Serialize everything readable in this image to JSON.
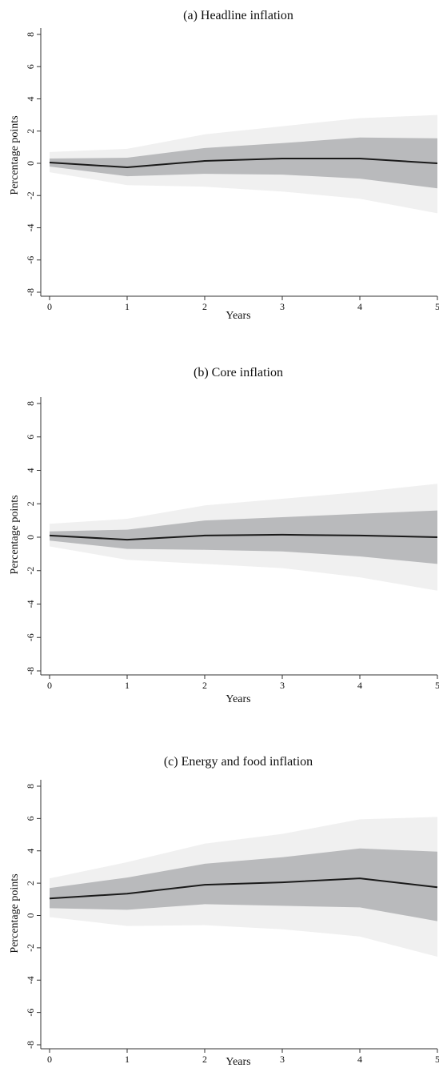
{
  "chart_data": [
    {
      "type": "area",
      "title": "(a) Headline inflation",
      "xlabel": "Years",
      "ylabel": "Percentage points",
      "x": [
        0,
        1,
        2,
        3,
        4,
        5
      ],
      "xlim": [
        0,
        5
      ],
      "ylim": [
        -8,
        8
      ],
      "xticks": [
        "0",
        "1",
        "2",
        "3",
        "4",
        "5"
      ],
      "yticks": [
        "-8",
        "-6",
        "-4",
        "-2",
        "0",
        "2",
        "4",
        "6",
        "8"
      ],
      "grid": false,
      "series": [
        {
          "role": "outer_band",
          "upper": [
            0.7,
            0.9,
            1.8,
            2.3,
            2.8,
            3.0
          ],
          "lower": [
            -0.55,
            -1.35,
            -1.45,
            -1.75,
            -2.2,
            -3.1
          ]
        },
        {
          "role": "inner_band",
          "upper": [
            0.3,
            0.35,
            0.95,
            1.25,
            1.6,
            1.55
          ],
          "lower": [
            -0.2,
            -0.8,
            -0.65,
            -0.7,
            -0.95,
            -1.55
          ]
        },
        {
          "role": "point_estimate",
          "values": [
            0.05,
            -0.25,
            0.15,
            0.3,
            0.3,
            0.0
          ]
        }
      ]
    },
    {
      "type": "area",
      "title": "(b) Core inflation",
      "xlabel": "Years",
      "ylabel": "Percentage points",
      "x": [
        0,
        1,
        2,
        3,
        4,
        5
      ],
      "xlim": [
        0,
        5
      ],
      "ylim": [
        -8,
        8
      ],
      "xticks": [
        "0",
        "1",
        "2",
        "3",
        "4",
        "5"
      ],
      "yticks": [
        "-8",
        "-6",
        "-4",
        "-2",
        "0",
        "2",
        "4",
        "6",
        "8"
      ],
      "grid": false,
      "series": [
        {
          "role": "outer_band",
          "upper": [
            0.8,
            1.1,
            1.9,
            2.3,
            2.7,
            3.2
          ],
          "lower": [
            -0.55,
            -1.35,
            -1.6,
            -1.85,
            -2.4,
            -3.2
          ]
        },
        {
          "role": "inner_band",
          "upper": [
            0.35,
            0.45,
            1.0,
            1.2,
            1.4,
            1.6
          ],
          "lower": [
            -0.2,
            -0.7,
            -0.75,
            -0.85,
            -1.15,
            -1.6
          ]
        },
        {
          "role": "point_estimate",
          "values": [
            0.1,
            -0.15,
            0.1,
            0.15,
            0.1,
            0.0
          ]
        }
      ]
    },
    {
      "type": "area",
      "title": "(c) Energy and food inflation",
      "xlabel": "Years",
      "ylabel": "Percentage points",
      "x": [
        0,
        1,
        2,
        3,
        4,
        5
      ],
      "xlim": [
        0,
        5
      ],
      "ylim": [
        -8,
        8
      ],
      "xticks": [
        "0",
        "1",
        "2",
        "3",
        "4",
        "5"
      ],
      "yticks": [
        "-8",
        "-6",
        "-4",
        "-2",
        "0",
        "2",
        "4",
        "6",
        "8"
      ],
      "grid": false,
      "series": [
        {
          "role": "outer_band",
          "upper": [
            2.3,
            3.3,
            4.45,
            5.05,
            5.95,
            6.1
          ],
          "lower": [
            -0.1,
            -0.65,
            -0.6,
            -0.85,
            -1.3,
            -2.55
          ]
        },
        {
          "role": "inner_band",
          "upper": [
            1.7,
            2.35,
            3.2,
            3.6,
            4.15,
            3.95
          ],
          "lower": [
            0.45,
            0.35,
            0.7,
            0.6,
            0.5,
            -0.35
          ]
        },
        {
          "role": "point_estimate",
          "values": [
            1.05,
            1.35,
            1.9,
            2.05,
            2.3,
            1.75
          ]
        }
      ]
    }
  ],
  "colors": {
    "outer_band": "#f0f0f0",
    "inner_band": "#b9babc",
    "line": "#1a1a1a",
    "axis": "#333333"
  }
}
